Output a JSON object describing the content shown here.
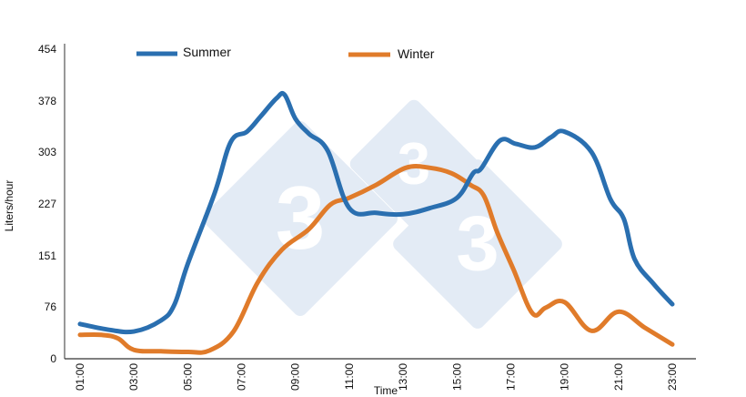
{
  "chart_data": {
    "type": "line",
    "title": "",
    "xlabel": "Time",
    "ylabel": "Liters/hour",
    "ylim": [
      0,
      454
    ],
    "yticks": [
      0,
      76,
      151,
      227,
      303,
      378,
      454
    ],
    "xticks": [
      "01:00",
      "03:00",
      "05:00",
      "07:00",
      "09:00",
      "11:00",
      "13:00",
      "15:00",
      "17:00",
      "19:00",
      "21:00",
      "23:00"
    ],
    "grid": false,
    "legend_position": "top",
    "series": [
      {
        "name": "Summer",
        "color": "#2a6fb0",
        "points": [
          [
            1.0,
            51
          ],
          [
            2.0,
            43
          ],
          [
            3.0,
            40
          ],
          [
            4.0,
            56
          ],
          [
            4.5,
            79
          ],
          [
            5.0,
            139
          ],
          [
            6.0,
            243
          ],
          [
            6.6,
            318
          ],
          [
            7.2,
            333
          ],
          [
            7.7,
            355
          ],
          [
            8.3,
            382
          ],
          [
            8.6,
            387
          ],
          [
            9.0,
            352
          ],
          [
            9.5,
            330
          ],
          [
            10.2,
            305
          ],
          [
            11.0,
            221
          ],
          [
            12.0,
            214
          ],
          [
            13.0,
            212
          ],
          [
            14.0,
            221
          ],
          [
            15.0,
            236
          ],
          [
            15.6,
            272
          ],
          [
            15.9,
            279
          ],
          [
            16.6,
            320
          ],
          [
            17.2,
            315
          ],
          [
            17.9,
            310
          ],
          [
            18.5,
            325
          ],
          [
            19.0,
            333
          ],
          [
            20.0,
            303
          ],
          [
            20.7,
            234
          ],
          [
            21.2,
            205
          ],
          [
            21.6,
            146
          ],
          [
            22.3,
            110
          ],
          [
            23.0,
            80
          ]
        ]
      },
      {
        "name": "Winter",
        "color": "#e07b2a",
        "points": [
          [
            1.0,
            35
          ],
          [
            1.8,
            35
          ],
          [
            2.4,
            30
          ],
          [
            3.0,
            13
          ],
          [
            4.0,
            11
          ],
          [
            5.0,
            10
          ],
          [
            5.8,
            12
          ],
          [
            6.7,
            40
          ],
          [
            7.6,
            112
          ],
          [
            8.5,
            160
          ],
          [
            9.5,
            190
          ],
          [
            10.3,
            226
          ],
          [
            11.0,
            236
          ],
          [
            12.0,
            255
          ],
          [
            13.1,
            280
          ],
          [
            14.0,
            280
          ],
          [
            14.8,
            272
          ],
          [
            15.5,
            255
          ],
          [
            16.0,
            239
          ],
          [
            16.5,
            185
          ],
          [
            17.1,
            131
          ],
          [
            17.8,
            67
          ],
          [
            18.3,
            75
          ],
          [
            19.0,
            83
          ],
          [
            20.0,
            41
          ],
          [
            21.0,
            69
          ],
          [
            22.0,
            45
          ],
          [
            23.0,
            21
          ]
        ]
      }
    ]
  },
  "legend": {
    "summer_label": "Summer",
    "winter_label": "Winter"
  },
  "axes": {
    "x_title": "Time",
    "y_title": "Liters/hour"
  },
  "watermark": {
    "glyph": "3",
    "color": "#e3ebf5"
  }
}
